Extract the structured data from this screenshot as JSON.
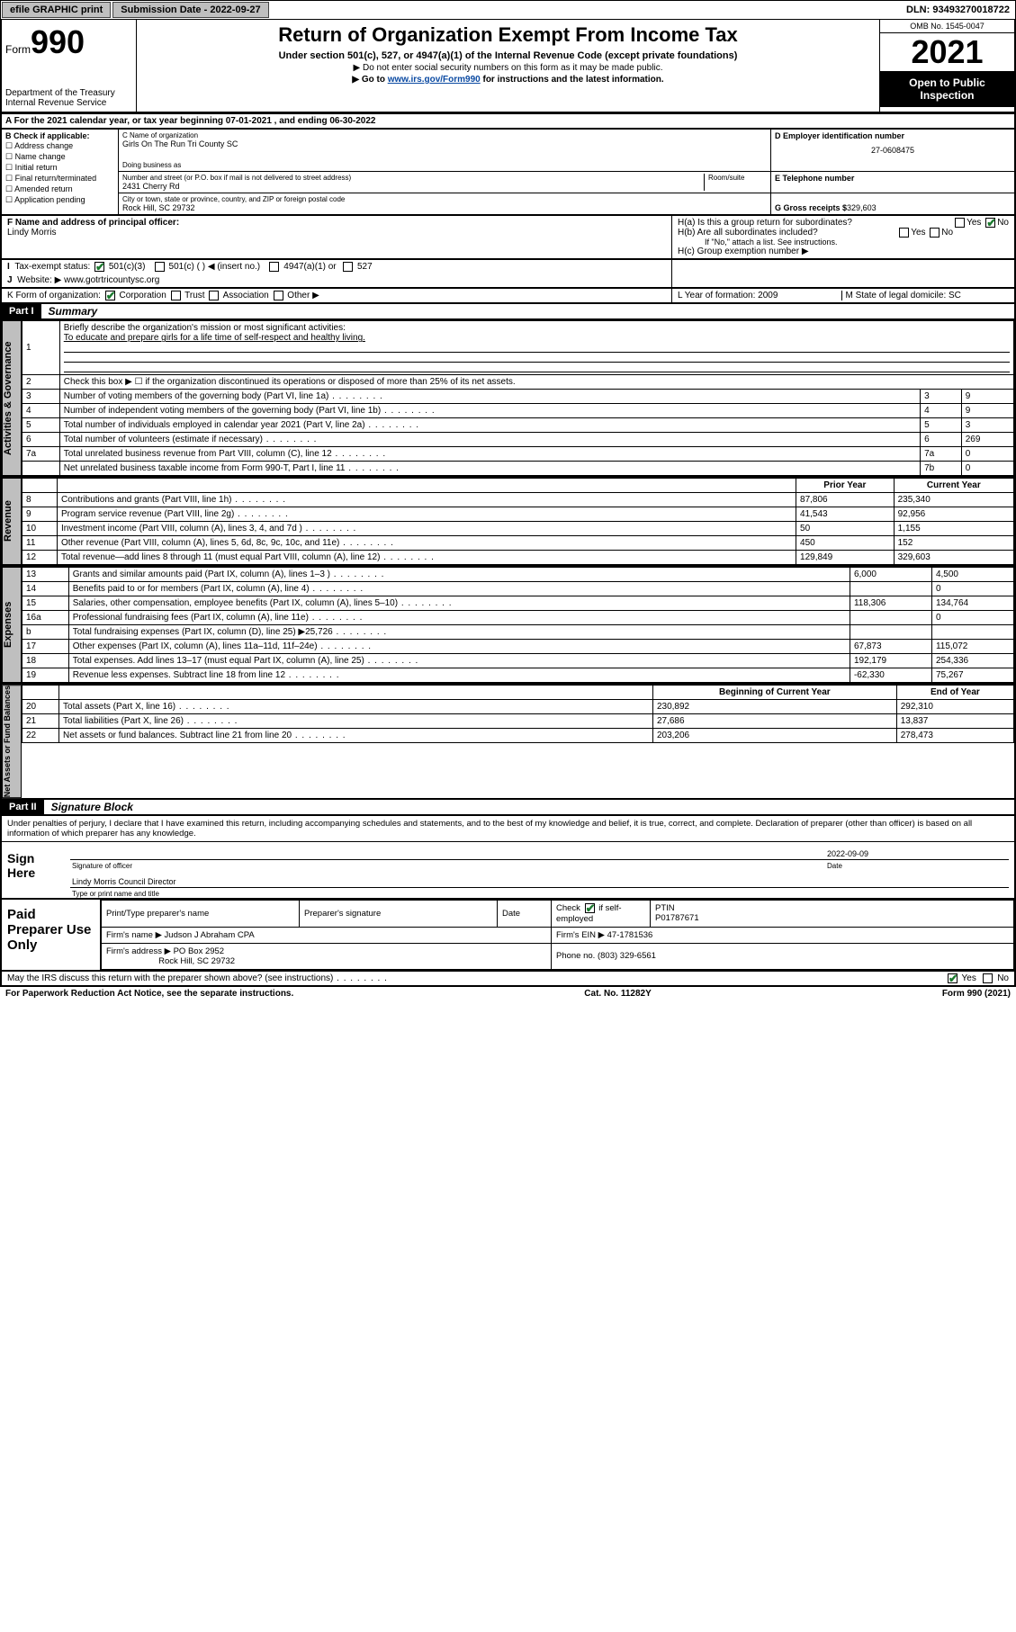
{
  "topbar": {
    "efile": "efile GRAPHIC print",
    "subdate_lbl": "Submission Date - ",
    "subdate": "2022-09-27",
    "dln_lbl": "DLN: ",
    "dln": "93493270018722"
  },
  "header": {
    "form_prefix": "Form",
    "form_no": "990",
    "dept": "Department of the Treasury",
    "irs": "Internal Revenue Service",
    "title": "Return of Organization Exempt From Income Tax",
    "sub1": "Under section 501(c), 527, or 4947(a)(1) of the Internal Revenue Code (except private foundations)",
    "sub2": "▶ Do not enter social security numbers on this form as it may be made public.",
    "sub3_pre": "▶ Go to ",
    "sub3_link": "www.irs.gov/Form990",
    "sub3_post": " for instructions and the latest information.",
    "omb": "OMB No. 1545-0047",
    "year": "2021",
    "open": "Open to Public Inspection"
  },
  "A": {
    "text_pre": "For the 2021 calendar year, or tax year beginning ",
    "begin": "07-01-2021",
    "text_mid": " , and ending ",
    "end": "06-30-2022"
  },
  "B": {
    "label": "B Check if applicable:",
    "opts": [
      "Address change",
      "Name change",
      "Initial return",
      "Final return/terminated",
      "Amended return",
      "Application pending"
    ]
  },
  "C": {
    "lbl_name": "C Name of organization",
    "name": "Girls On The Run Tri County SC",
    "lbl_dba": "Doing business as",
    "lbl_street": "Number and street (or P.O. box if mail is not delivered to street address)",
    "lbl_room": "Room/suite",
    "street": "2431 Cherry Rd",
    "lbl_city": "City or town, state or province, country, and ZIP or foreign postal code",
    "city": "Rock Hill, SC  29732"
  },
  "D": {
    "lbl": "D Employer identification number",
    "val": "27-0608475"
  },
  "E": {
    "lbl": "E Telephone number",
    "val": ""
  },
  "G": {
    "lbl": "G Gross receipts $ ",
    "val": "329,603"
  },
  "F": {
    "lbl": "F  Name and address of principal officer:",
    "val": "Lindy Morris"
  },
  "H": {
    "a": "H(a)  Is this a group return for subordinates?",
    "a_yes": "Yes",
    "a_no": "No",
    "b": "H(b)  Are all subordinates included?",
    "b_note": "If \"No,\" attach a list. See instructions.",
    "c": "H(c)  Group exemption number ▶"
  },
  "I": {
    "lbl": "Tax-exempt status:",
    "o1": "501(c)(3)",
    "o2": "501(c) (  ) ◀ (insert no.)",
    "o3": "4947(a)(1) or",
    "o4": "527"
  },
  "J": {
    "lbl": "Website: ▶",
    "val": "www.gotrtricountysc.org"
  },
  "K": {
    "lbl": "K Form of organization:",
    "o1": "Corporation",
    "o2": "Trust",
    "o3": "Association",
    "o4": "Other ▶"
  },
  "L": {
    "lbl": "L Year of formation: ",
    "val": "2009"
  },
  "M": {
    "lbl": "M State of legal domicile: ",
    "val": "SC"
  },
  "part1": {
    "hdr": "Part I",
    "title": "Summary"
  },
  "summary": {
    "q1_lbl": "Briefly describe the organization's mission or most significant activities:",
    "q1_val": "To educate and prepare girls for a life time of self-respect and healthy living.",
    "q2": "Check this box ▶ ☐  if the organization discontinued its operations or disposed of more than 25% of its net assets.",
    "rows_gov": [
      {
        "n": "3",
        "d": "Number of voting members of the governing body (Part VI, line 1a)",
        "b": "3",
        "v": "9"
      },
      {
        "n": "4",
        "d": "Number of independent voting members of the governing body (Part VI, line 1b)",
        "b": "4",
        "v": "9"
      },
      {
        "n": "5",
        "d": "Total number of individuals employed in calendar year 2021 (Part V, line 2a)",
        "b": "5",
        "v": "3"
      },
      {
        "n": "6",
        "d": "Total number of volunteers (estimate if necessary)",
        "b": "6",
        "v": "269"
      },
      {
        "n": "7a",
        "d": "Total unrelated business revenue from Part VIII, column (C), line 12",
        "b": "7a",
        "v": "0"
      },
      {
        "n": "",
        "d": "Net unrelated business taxable income from Form 990-T, Part I, line 11",
        "b": "7b",
        "v": "0"
      }
    ],
    "col_prior": "Prior Year",
    "col_curr": "Current Year",
    "rows_rev": [
      {
        "n": "8",
        "d": "Contributions and grants (Part VIII, line 1h)",
        "p": "87,806",
        "c": "235,340"
      },
      {
        "n": "9",
        "d": "Program service revenue (Part VIII, line 2g)",
        "p": "41,543",
        "c": "92,956"
      },
      {
        "n": "10",
        "d": "Investment income (Part VIII, column (A), lines 3, 4, and 7d )",
        "p": "50",
        "c": "1,155"
      },
      {
        "n": "11",
        "d": "Other revenue (Part VIII, column (A), lines 5, 6d, 8c, 9c, 10c, and 11e)",
        "p": "450",
        "c": "152"
      },
      {
        "n": "12",
        "d": "Total revenue—add lines 8 through 11 (must equal Part VIII, column (A), line 12)",
        "p": "129,849",
        "c": "329,603"
      }
    ],
    "rows_exp": [
      {
        "n": "13",
        "d": "Grants and similar amounts paid (Part IX, column (A), lines 1–3 )",
        "p": "6,000",
        "c": "4,500"
      },
      {
        "n": "14",
        "d": "Benefits paid to or for members (Part IX, column (A), line 4)",
        "p": "",
        "c": "0"
      },
      {
        "n": "15",
        "d": "Salaries, other compensation, employee benefits (Part IX, column (A), lines 5–10)",
        "p": "118,306",
        "c": "134,764"
      },
      {
        "n": "16a",
        "d": "Professional fundraising fees (Part IX, column (A), line 11e)",
        "p": "",
        "c": "0"
      },
      {
        "n": "b",
        "d": "Total fundraising expenses (Part IX, column (D), line 25) ▶25,726",
        "p": "__grey__",
        "c": "__grey__"
      },
      {
        "n": "17",
        "d": "Other expenses (Part IX, column (A), lines 11a–11d, 11f–24e)",
        "p": "67,873",
        "c": "115,072"
      },
      {
        "n": "18",
        "d": "Total expenses. Add lines 13–17 (must equal Part IX, column (A), line 25)",
        "p": "192,179",
        "c": "254,336"
      },
      {
        "n": "19",
        "d": "Revenue less expenses. Subtract line 18 from line 12",
        "p": "-62,330",
        "c": "75,267"
      }
    ],
    "col_begin": "Beginning of Current Year",
    "col_end": "End of Year",
    "rows_net": [
      {
        "n": "20",
        "d": "Total assets (Part X, line 16)",
        "p": "230,892",
        "c": "292,310"
      },
      {
        "n": "21",
        "d": "Total liabilities (Part X, line 26)",
        "p": "27,686",
        "c": "13,837"
      },
      {
        "n": "22",
        "d": "Net assets or fund balances. Subtract line 21 from line 20",
        "p": "203,206",
        "c": "278,473"
      }
    ],
    "side_gov": "Activities & Governance",
    "side_rev": "Revenue",
    "side_exp": "Expenses",
    "side_net": "Net Assets or Fund Balances"
  },
  "part2": {
    "hdr": "Part II",
    "title": "Signature Block"
  },
  "sig": {
    "decl": "Under penalties of perjury, I declare that I have examined this return, including accompanying schedules and statements, and to the best of my knowledge and belief, it is true, correct, and complete. Declaration of preparer (other than officer) is based on all information of which preparer has any knowledge.",
    "sign_here": "Sign Here",
    "sig_officer": "Signature of officer",
    "date_lbl": "Date",
    "date": "2022-09-09",
    "name_title": "Lindy Morris  Council Director",
    "name_lbl": "Type or print name and title"
  },
  "paid": {
    "side": "Paid Preparer Use Only",
    "h1": "Print/Type preparer's name",
    "h2": "Preparer's signature",
    "h3": "Date",
    "h4_lbl": "Check",
    "h4_lbl2": "if self-employed",
    "h5_lbl": "PTIN",
    "h5": "P01787671",
    "firm_lbl": "Firm's name      ▶",
    "firm": "Judson J Abraham CPA",
    "ein_lbl": "Firm's EIN ▶",
    "ein": "47-1781536",
    "addr_lbl": "Firm's address ▶",
    "addr1": "PO Box 2952",
    "addr2": "Rock Hill, SC  29732",
    "phone_lbl": "Phone no. ",
    "phone": "(803) 329-6561"
  },
  "footer": {
    "q": "May the IRS discuss this return with the preparer shown above? (see instructions)",
    "yes": "Yes",
    "no": "No",
    "pra": "For Paperwork Reduction Act Notice, see the separate instructions.",
    "cat": "Cat. No. 11282Y",
    "form": "Form 990 (2021)"
  }
}
